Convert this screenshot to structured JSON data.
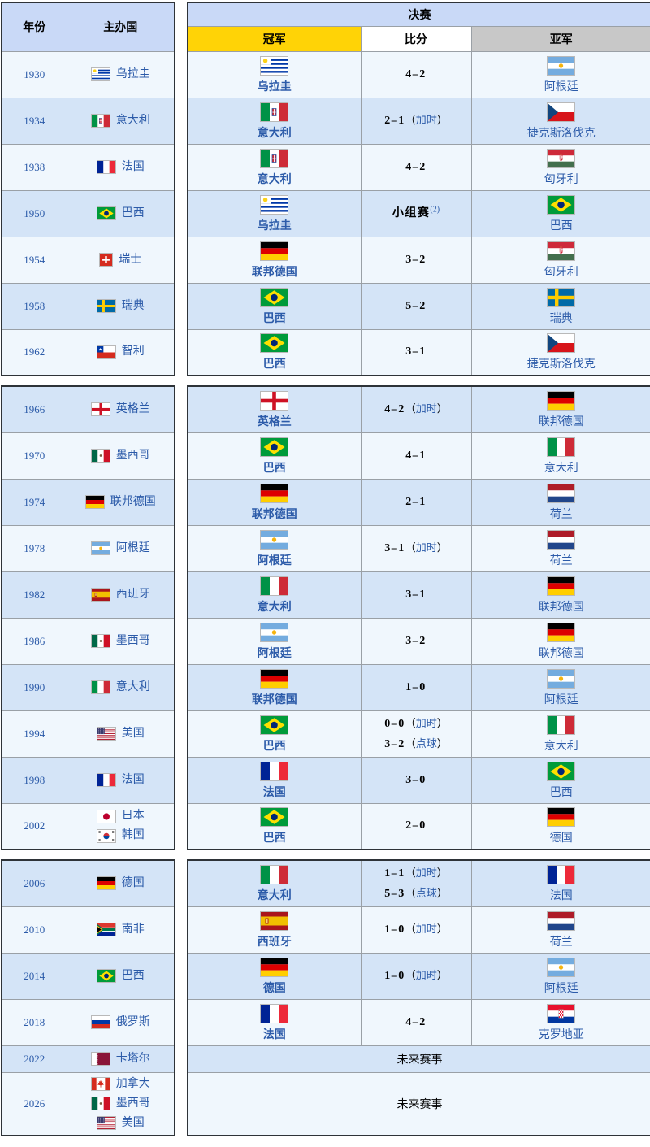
{
  "labels": {
    "headers": {
      "year": "年份",
      "host": "主办国",
      "final": "决赛",
      "champion": "冠军",
      "score": "比分",
      "runner_up": "亚军"
    },
    "future": "未来赛事",
    "note_open": "（",
    "note_close": "）"
  },
  "colors": {
    "header_blue": "#c9d9f7",
    "champion_gold": "#ffd306",
    "runner_up_silver": "#c8c8c8",
    "row_blue": "#d4e4f7",
    "row_pale": "#f0f7fd",
    "link_blue": "#2c5ba9",
    "outer_border": "#2e3338"
  },
  "sections": [
    {
      "first_shade": "pale",
      "rows": [
        {
          "year": "1930",
          "hosts": [
            {
              "name": "乌拉圭",
              "flag": "uruguay"
            }
          ],
          "champion": {
            "name": "乌拉圭",
            "flag": "uruguay"
          },
          "score": [
            {
              "main": "4–2"
            }
          ],
          "runner": {
            "name": "阿根廷",
            "flag": "argentina"
          }
        },
        {
          "year": "1934",
          "hosts": [
            {
              "name": "意大利",
              "flag": "italy_old"
            }
          ],
          "champion": {
            "name": "意大利",
            "flag": "italy_old"
          },
          "score": [
            {
              "main": "2–1",
              "note": "加时"
            }
          ],
          "runner": {
            "name": "捷克斯洛伐克",
            "flag": "czechoslovakia"
          }
        },
        {
          "year": "1938",
          "hosts": [
            {
              "name": "法国",
              "flag": "france"
            }
          ],
          "champion": {
            "name": "意大利",
            "flag": "italy_old"
          },
          "score": [
            {
              "main": "4–2"
            }
          ],
          "runner": {
            "name": "匈牙利",
            "flag": "hungary_old"
          }
        },
        {
          "year": "1950",
          "hosts": [
            {
              "name": "巴西",
              "flag": "brazil"
            }
          ],
          "champion": {
            "name": "乌拉圭",
            "flag": "uruguay"
          },
          "score": [
            {
              "main": "小组赛",
              "sup": "(2)"
            }
          ],
          "runner": {
            "name": "巴西",
            "flag": "brazil"
          }
        },
        {
          "year": "1954",
          "hosts": [
            {
              "name": "瑞士",
              "flag": "switzerland"
            }
          ],
          "champion": {
            "name": "联邦德国",
            "flag": "germany"
          },
          "score": [
            {
              "main": "3–2"
            }
          ],
          "runner": {
            "name": "匈牙利",
            "flag": "hungary_old"
          }
        },
        {
          "year": "1958",
          "hosts": [
            {
              "name": "瑞典",
              "flag": "sweden"
            }
          ],
          "champion": {
            "name": "巴西",
            "flag": "brazil"
          },
          "score": [
            {
              "main": "5–2"
            }
          ],
          "runner": {
            "name": "瑞典",
            "flag": "sweden"
          }
        },
        {
          "year": "1962",
          "hosts": [
            {
              "name": "智利",
              "flag": "chile"
            }
          ],
          "champion": {
            "name": "巴西",
            "flag": "brazil"
          },
          "score": [
            {
              "main": "3–1"
            }
          ],
          "runner": {
            "name": "捷克斯洛伐克",
            "flag": "czechoslovakia"
          }
        }
      ]
    },
    {
      "first_shade": "blue",
      "rows": [
        {
          "year": "1966",
          "hosts": [
            {
              "name": "英格兰",
              "flag": "england"
            }
          ],
          "champion": {
            "name": "英格兰",
            "flag": "england"
          },
          "score": [
            {
              "main": "4–2",
              "note": "加时"
            }
          ],
          "runner": {
            "name": "联邦德国",
            "flag": "germany"
          }
        },
        {
          "year": "1970",
          "hosts": [
            {
              "name": "墨西哥",
              "flag": "mexico"
            }
          ],
          "champion": {
            "name": "巴西",
            "flag": "brazil"
          },
          "score": [
            {
              "main": "4–1"
            }
          ],
          "runner": {
            "name": "意大利",
            "flag": "italy"
          }
        },
        {
          "year": "1974",
          "hosts": [
            {
              "name": "联邦德国",
              "flag": "germany"
            }
          ],
          "champion": {
            "name": "联邦德国",
            "flag": "germany"
          },
          "score": [
            {
              "main": "2–1"
            }
          ],
          "runner": {
            "name": "荷兰",
            "flag": "netherlands"
          }
        },
        {
          "year": "1978",
          "hosts": [
            {
              "name": "阿根廷",
              "flag": "argentina"
            }
          ],
          "champion": {
            "name": "阿根廷",
            "flag": "argentina"
          },
          "score": [
            {
              "main": "3–1",
              "note": "加时"
            }
          ],
          "runner": {
            "name": "荷兰",
            "flag": "netherlands"
          }
        },
        {
          "year": "1982",
          "hosts": [
            {
              "name": "西班牙",
              "flag": "spain"
            }
          ],
          "champion": {
            "name": "意大利",
            "flag": "italy"
          },
          "score": [
            {
              "main": "3–1"
            }
          ],
          "runner": {
            "name": "联邦德国",
            "flag": "germany"
          }
        },
        {
          "year": "1986",
          "hosts": [
            {
              "name": "墨西哥",
              "flag": "mexico"
            }
          ],
          "champion": {
            "name": "阿根廷",
            "flag": "argentina"
          },
          "score": [
            {
              "main": "3–2"
            }
          ],
          "runner": {
            "name": "联邦德国",
            "flag": "germany"
          }
        },
        {
          "year": "1990",
          "hosts": [
            {
              "name": "意大利",
              "flag": "italy"
            }
          ],
          "champion": {
            "name": "联邦德国",
            "flag": "germany"
          },
          "score": [
            {
              "main": "1–0"
            }
          ],
          "runner": {
            "name": "阿根廷",
            "flag": "argentina"
          }
        },
        {
          "year": "1994",
          "hosts": [
            {
              "name": "美国",
              "flag": "usa"
            }
          ],
          "champion": {
            "name": "巴西",
            "flag": "brazil"
          },
          "score": [
            {
              "main": "0–0",
              "note": "加时"
            },
            {
              "main": "3–2",
              "note": "点球"
            }
          ],
          "runner": {
            "name": "意大利",
            "flag": "italy"
          }
        },
        {
          "year": "1998",
          "hosts": [
            {
              "name": "法国",
              "flag": "france"
            }
          ],
          "champion": {
            "name": "法国",
            "flag": "france"
          },
          "score": [
            {
              "main": "3–0"
            }
          ],
          "runner": {
            "name": "巴西",
            "flag": "brazil"
          }
        },
        {
          "year": "2002",
          "hosts": [
            {
              "name": "日本",
              "flag": "japan"
            },
            {
              "name": "韩国",
              "flag": "south_korea"
            }
          ],
          "champion": {
            "name": "巴西",
            "flag": "brazil"
          },
          "score": [
            {
              "main": "2–0"
            }
          ],
          "runner": {
            "name": "德国",
            "flag": "germany"
          }
        }
      ]
    },
    {
      "first_shade": "blue",
      "rows": [
        {
          "year": "2006",
          "hosts": [
            {
              "name": "德国",
              "flag": "germany"
            }
          ],
          "champion": {
            "name": "意大利",
            "flag": "italy"
          },
          "score": [
            {
              "main": "1–1",
              "note": "加时"
            },
            {
              "main": "5–3",
              "note": "点球"
            }
          ],
          "runner": {
            "name": "法国",
            "flag": "france"
          }
        },
        {
          "year": "2010",
          "hosts": [
            {
              "name": "南非",
              "flag": "south_africa"
            }
          ],
          "champion": {
            "name": "西班牙",
            "flag": "spain"
          },
          "score": [
            {
              "main": "1–0",
              "note": "加时"
            }
          ],
          "runner": {
            "name": "荷兰",
            "flag": "netherlands"
          }
        },
        {
          "year": "2014",
          "hosts": [
            {
              "name": "巴西",
              "flag": "brazil"
            }
          ],
          "champion": {
            "name": "德国",
            "flag": "germany"
          },
          "score": [
            {
              "main": "1–0",
              "note": "加时"
            }
          ],
          "runner": {
            "name": "阿根廷",
            "flag": "argentina"
          }
        },
        {
          "year": "2018",
          "hosts": [
            {
              "name": "俄罗斯",
              "flag": "russia"
            }
          ],
          "champion": {
            "name": "法国",
            "flag": "france"
          },
          "score": [
            {
              "main": "4–2"
            }
          ],
          "runner": {
            "name": "克罗地亚",
            "flag": "croatia"
          }
        },
        {
          "year": "2022",
          "hosts": [
            {
              "name": "卡塔尔",
              "flag": "qatar"
            }
          ],
          "future": true,
          "h": 33
        },
        {
          "year": "2026",
          "hosts": [
            {
              "name": "加拿大",
              "flag": "canada"
            },
            {
              "name": "墨西哥",
              "flag": "mexico"
            },
            {
              "name": "美国",
              "flag": "usa"
            }
          ],
          "future": true,
          "h": 78
        }
      ]
    }
  ]
}
